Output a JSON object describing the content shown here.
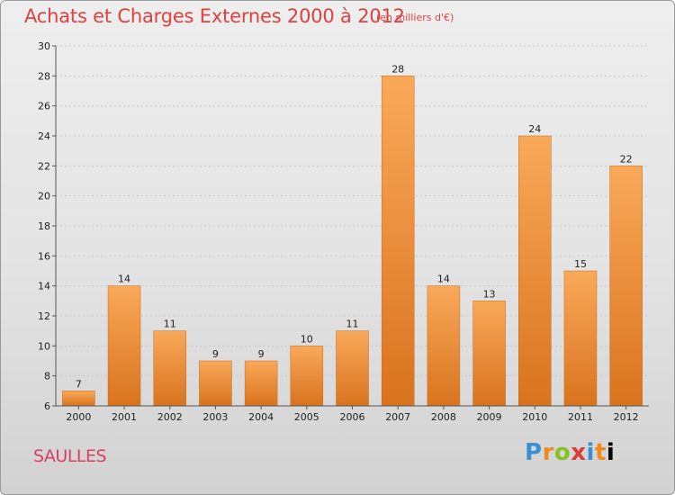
{
  "header": {
    "title": "Achats et Charges Externes 2000 à 2012",
    "subtitle": "(en milliers d'€)"
  },
  "footer": {
    "place": "SAULLES",
    "logo_letters": [
      "P",
      "r",
      "o",
      "x",
      "i",
      "t",
      "i"
    ]
  },
  "colors": {
    "bar_light": "#f9a95a",
    "bar_dark": "#d9731e",
    "title": "#e04040",
    "grid": "#c8c8c8"
  },
  "chart_data": {
    "type": "bar",
    "title": "Achats et Charges Externes 2000 à 2012",
    "subtitle": "(en milliers d'€)",
    "categories": [
      "2000",
      "2001",
      "2002",
      "2003",
      "2004",
      "2005",
      "2006",
      "2007",
      "2008",
      "2009",
      "2010",
      "2011",
      "2012"
    ],
    "values": [
      7,
      14,
      11,
      9,
      9,
      10,
      11,
      28,
      14,
      13,
      24,
      15,
      22
    ],
    "ylim": [
      6,
      30
    ],
    "yticks": [
      6,
      8,
      10,
      12,
      14,
      16,
      18,
      20,
      22,
      24,
      26,
      28,
      30
    ],
    "grid": true,
    "xlabel": "",
    "ylabel": ""
  }
}
